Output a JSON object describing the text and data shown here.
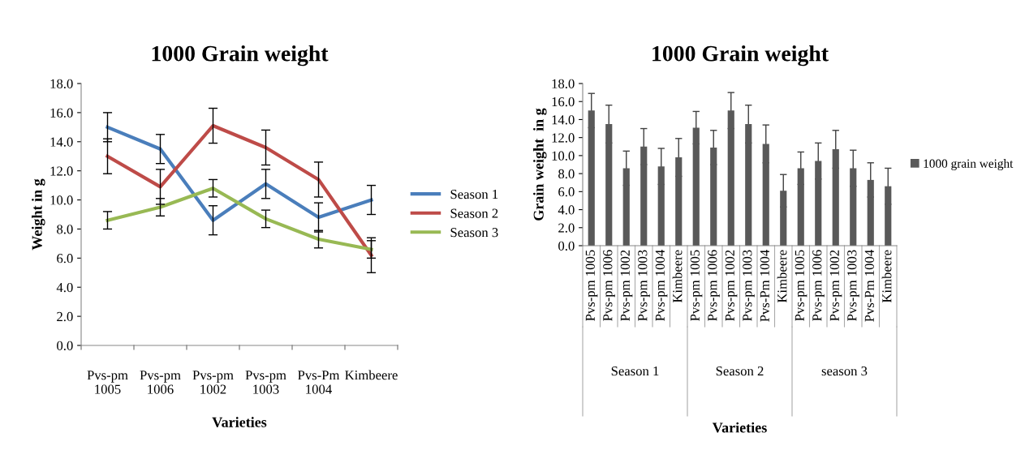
{
  "chart_data": [
    {
      "type": "line",
      "title": "1000 Grain weight",
      "xlabel": "Varieties",
      "ylabel": "Weight in g",
      "categories": [
        "Pvs-pm\n1005",
        "Pvs-pm\n1006",
        "Pvs-pm\n1002",
        "Pvs-pm\n1003",
        "Pvs-Pm\n1004",
        "Kimbeere"
      ],
      "series": [
        {
          "name": "Season 1",
          "color": "#4a7ebb",
          "values": [
            15.0,
            13.5,
            8.6,
            11.1,
            8.8,
            10.0
          ],
          "errors": [
            1.0,
            1.0,
            1.0,
            1.0,
            1.0,
            1.0
          ]
        },
        {
          "name": "Season 2",
          "color": "#be4b48",
          "values": [
            13.0,
            10.9,
            15.1,
            13.6,
            11.4,
            6.2
          ],
          "errors": [
            1.2,
            1.2,
            1.2,
            1.2,
            1.2,
            1.2
          ]
        },
        {
          "name": "Season 3",
          "color": "#98b954",
          "values": [
            8.6,
            9.5,
            10.8,
            8.7,
            7.3,
            6.6
          ],
          "errors": [
            0.6,
            0.6,
            0.6,
            0.6,
            0.6,
            0.6
          ]
        }
      ],
      "ylim": [
        0,
        18
      ],
      "yticks": [
        {
          "value": 0,
          "label": "0.0"
        },
        {
          "value": 2,
          "label": "2.0"
        },
        {
          "value": 4,
          "label": "4.0"
        },
        {
          "value": 6,
          "label": "6.0"
        },
        {
          "value": 8,
          "label": "8.0"
        },
        {
          "value": 10,
          "label": "10.0"
        },
        {
          "value": 12,
          "label": "12.0"
        },
        {
          "value": 14,
          "label": "14.0"
        },
        {
          "value": 16,
          "label": "16.0"
        },
        {
          "value": 18,
          "label": "18.0"
        }
      ],
      "grid": false,
      "legend": "right",
      "marker": "none",
      "line_style": "solid"
    },
    {
      "type": "bar",
      "title": "1000 Grain weight",
      "xlabel": "Varieties",
      "ylabel": "Grain weight  in g",
      "categories": [
        "Pvs-pm 1005",
        "Pvs-pm 1006",
        "Pvs-pm 1002",
        "Pvs-pm 1003",
        "Pvs-pm 1004",
        "Kimbeere",
        "Pvs-pm 1005",
        "Pvs-pm 1006",
        "Pvs-pm 1002",
        "Pvs-pm 1003",
        "Pvs-Pm 1004",
        "Kimbeere",
        "Pvs-pm 1005",
        "Pvs-pm 1006",
        "Pvs-pm 1002",
        "Pvs-pm 1003",
        "Pvs-Pm 1004",
        "Kimbeere"
      ],
      "series": [
        {
          "name": "1000 grain weight",
          "color": "#595959",
          "values": [
            15.0,
            13.5,
            8.6,
            11.0,
            8.8,
            9.8,
            13.1,
            10.9,
            15.0,
            13.5,
            11.3,
            6.1,
            8.6,
            9.4,
            10.7,
            8.6,
            7.3,
            6.6
          ],
          "errors": [
            1.9,
            2.1,
            1.9,
            2.0,
            2.0,
            2.1,
            1.8,
            1.9,
            2.0,
            2.1,
            2.1,
            1.8,
            1.8,
            2.0,
            2.1,
            2.0,
            1.9,
            2.0
          ]
        }
      ],
      "annotations": [
        "Season 1",
        "Season 2",
        "season 3"
      ],
      "ylim": [
        0,
        18
      ],
      "yticks": [
        {
          "value": 0,
          "label": "0.0"
        },
        {
          "value": 2,
          "label": "2.0"
        },
        {
          "value": 4,
          "label": "4.0"
        },
        {
          "value": 6,
          "label": "6.0"
        },
        {
          "value": 8,
          "label": "8.0"
        },
        {
          "value": 10,
          "label": "10.0"
        },
        {
          "value": 12,
          "label": "12.0"
        },
        {
          "value": 14,
          "label": "14.0"
        },
        {
          "value": 16,
          "label": "16.0"
        },
        {
          "value": 18,
          "label": "18.0"
        }
      ],
      "grid": false,
      "legend": "right"
    }
  ]
}
